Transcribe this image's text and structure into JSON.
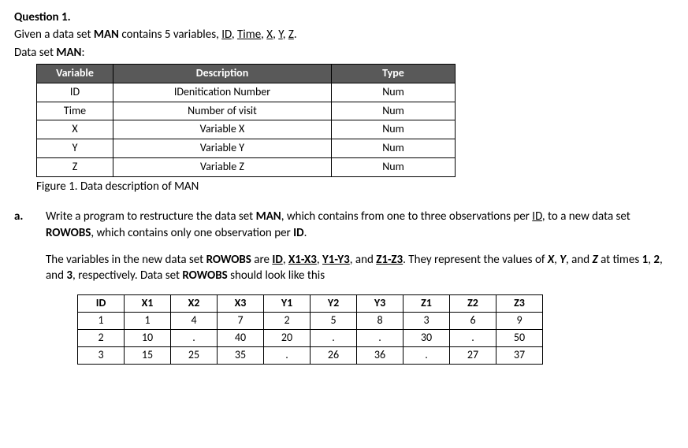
{
  "question_label": "Question 1.",
  "intro": {
    "prefix": "Given a data set ",
    "dataset": "MAN",
    "mid": " contains 5 variables, ",
    "vars": [
      {
        "t": "ID",
        "u": true
      },
      {
        "t": ", "
      },
      {
        "t": "Time",
        "u": true
      },
      {
        "t": ", "
      },
      {
        "t": "X",
        "u": true
      },
      {
        "t": ", "
      },
      {
        "t": "Y",
        "u": true
      },
      {
        "t": ", "
      },
      {
        "t": "Z",
        "u": true
      },
      {
        "t": "."
      }
    ]
  },
  "ds_label_prefix": "Data set ",
  "ds_label_name": "MAN",
  "ds_label_suffix": ":",
  "desc_table": {
    "headers": [
      "Variable",
      "Description",
      "Type"
    ],
    "rows": [
      [
        "ID",
        "IDenitication Number",
        "Num"
      ],
      [
        "Time",
        "Number of visit",
        "Num"
      ],
      [
        "X",
        "Variable X",
        "Num"
      ],
      [
        "Y",
        "Variable Y",
        "Num"
      ],
      [
        "Z",
        "Variable Z",
        "Num"
      ]
    ]
  },
  "figure_caption": "Figure 1. Data description of MAN",
  "part_letter": "a.",
  "para1": {
    "t1": "Write a program to restructure the data set ",
    "b1": "MAN",
    "t2": ", which contains from one to three observations per ",
    "u1": "ID",
    "t3": ", to a new data set ",
    "b2": "ROWOBS",
    "t4": ", which contains only one observation per ",
    "b3": "ID",
    "t5": "."
  },
  "para2": {
    "t1": "The variables in the new data set ",
    "b1": "ROWOBS",
    "t2": " are ",
    "u1": "ID",
    "t3": ", ",
    "u2": "X1-X3",
    "t4": ", ",
    "u3": "Y1-Y3",
    "t5": ", and ",
    "u4": "Z1-Z3",
    "t6": ". They represent the values of ",
    "bi1": "X",
    "t7": ", ",
    "bi2": "Y",
    "t8": ", and ",
    "bi3": "Z",
    "t9": " at times ",
    "b2": "1",
    "t10": ", ",
    "b3": "2",
    "t11": ", and ",
    "b4": "3",
    "t12": ", respectively. Data set ",
    "b5": "ROWOBS",
    "t13": " should look like this"
  },
  "data_table": {
    "headers": [
      "ID",
      "X1",
      "X2",
      "X3",
      "Y1",
      "Y2",
      "Y3",
      "Z1",
      "Z2",
      "Z3"
    ],
    "rows": [
      [
        "1",
        "1",
        "4",
        "7",
        "2",
        "5",
        "8",
        "3",
        "6",
        "9"
      ],
      [
        "2",
        "10",
        ".",
        "40",
        "20",
        ".",
        ".",
        "30",
        ".",
        "50"
      ],
      [
        "3",
        "15",
        "25",
        "35",
        ".",
        "26",
        "36",
        ".",
        "27",
        "37"
      ]
    ]
  }
}
